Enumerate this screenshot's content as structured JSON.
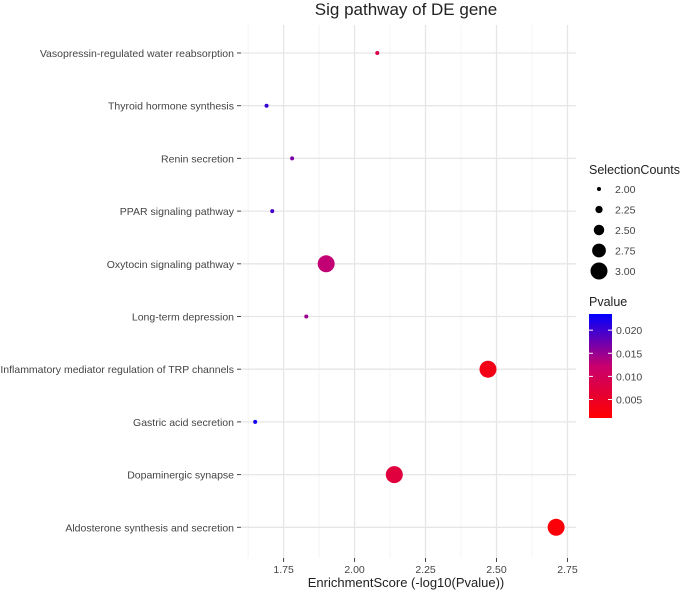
{
  "chart_data": {
    "type": "scatter",
    "title": "Sig pathway of DE gene",
    "xlabel": "EnrichmentScore (-log10(Pvalue))",
    "ylabel": "",
    "xlim": [
      1.6,
      2.78
    ],
    "x_ticks": [
      1.75,
      2.0,
      2.25,
      2.5,
      2.75
    ],
    "x_tick_labels": [
      "1.75",
      "2.00",
      "2.25",
      "2.50",
      "2.75"
    ],
    "categories": [
      "Vasopressin-regulated water reabsorption",
      "Thyroid hormone synthesis",
      "Renin secretion",
      "PPAR signaling pathway",
      "Oxytocin signaling pathway",
      "Long-term depression",
      "Inflammatory mediator regulation of TRP channels",
      "Gastric acid secretion",
      "Dopaminergic synapse",
      "Aldosterone synthesis and secretion"
    ],
    "points": [
      {
        "pathway": "Vasopressin-regulated water reabsorption",
        "x": 2.08,
        "count": 2,
        "pvalue": 0.0083
      },
      {
        "pathway": "Thyroid hormone synthesis",
        "x": 1.69,
        "count": 2,
        "pvalue": 0.0204
      },
      {
        "pathway": "Renin secretion",
        "x": 1.78,
        "count": 2,
        "pvalue": 0.0166
      },
      {
        "pathway": "PPAR signaling pathway",
        "x": 1.71,
        "count": 2,
        "pvalue": 0.0195
      },
      {
        "pathway": "Oxytocin signaling pathway",
        "x": 1.9,
        "count": 3,
        "pvalue": 0.0126
      },
      {
        "pathway": "Long-term depression",
        "x": 1.83,
        "count": 2,
        "pvalue": 0.0148
      },
      {
        "pathway": "Inflammatory mediator regulation of TRP channels",
        "x": 2.47,
        "count": 3,
        "pvalue": 0.0034
      },
      {
        "pathway": "Gastric acid secretion",
        "x": 1.65,
        "count": 2,
        "pvalue": 0.0224
      },
      {
        "pathway": "Dopaminergic synapse",
        "x": 2.14,
        "count": 3,
        "pvalue": 0.0073
      },
      {
        "pathway": "Aldosterone synthesis and secretion",
        "x": 2.71,
        "count": 3,
        "pvalue": 0.0019
      }
    ],
    "size_legend": {
      "title": "SelectionCounts",
      "values": [
        2.0,
        2.25,
        2.5,
        2.75,
        3.0
      ],
      "labels": [
        "2.00",
        "2.25",
        "2.50",
        "2.75",
        "3.00"
      ]
    },
    "color_legend": {
      "title": "Pvalue",
      "min": 0.001,
      "max": 0.0235,
      "low_color": "#ff0000",
      "high_color": "#0000ff",
      "ticks": [
        0.005,
        0.01,
        0.015,
        0.02
      ],
      "labels": [
        "0.005",
        "0.010",
        "0.015",
        "0.020"
      ]
    },
    "panel_background": "#ffffff",
    "grid": true,
    "legend_position": "right"
  }
}
